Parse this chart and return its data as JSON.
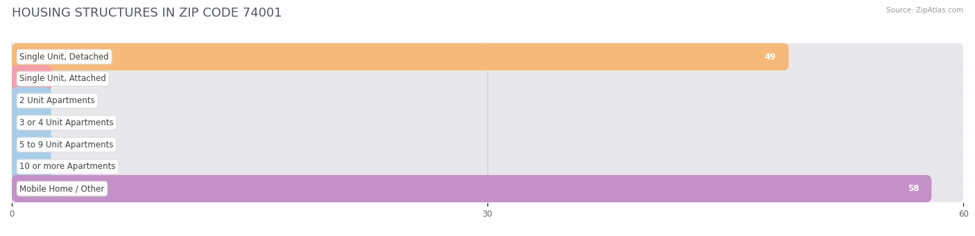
{
  "title": "HOUSING STRUCTURES IN ZIP CODE 74001",
  "source": "Source: ZipAtlas.com",
  "categories": [
    "Single Unit, Detached",
    "Single Unit, Attached",
    "2 Unit Apartments",
    "3 or 4 Unit Apartments",
    "5 to 9 Unit Apartments",
    "10 or more Apartments",
    "Mobile Home / Other"
  ],
  "values": [
    49,
    2,
    0,
    0,
    0,
    0,
    58
  ],
  "bar_colors": [
    "#f7b97a",
    "#f2a0aa",
    "#a8cde8",
    "#a8cde8",
    "#a8cde8",
    "#a8cde8",
    "#c490c8"
  ],
  "bar_bg_color": "#e8e8ec",
  "label_bg_color": "#ffffff",
  "label_border_color": "#dddddd",
  "row_bg_colors": [
    "#f2f2f5",
    "#fafafa"
  ],
  "xlim": [
    0,
    60
  ],
  "xticks": [
    0,
    30,
    60
  ],
  "grid_color": "#cccccc",
  "title_color": "#555566",
  "source_color": "#999999",
  "title_fontsize": 13,
  "label_fontsize": 8.5,
  "value_fontsize": 8.5,
  "tick_fontsize": 8.5,
  "bar_height": 0.62,
  "min_bar_width": 2.5,
  "figsize": [
    14.06,
    3.41
  ],
  "dpi": 100
}
